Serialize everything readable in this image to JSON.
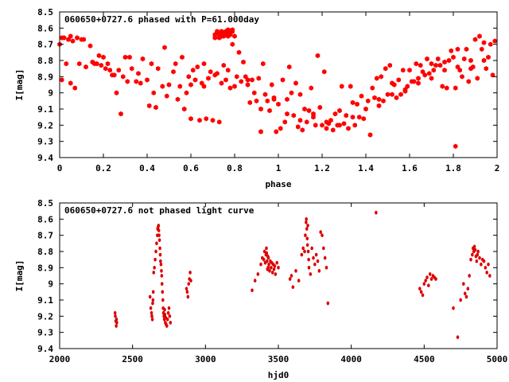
{
  "chart_data": [
    {
      "type": "scatter",
      "title": "060650+0727.6 phased with P=61.000day",
      "xlabel": "phase",
      "ylabel": "I[mag]",
      "xlim": [
        0,
        2
      ],
      "ylim": [
        8.5,
        9.4
      ],
      "y_inverted": true,
      "grid": false,
      "xticks": [
        "0",
        "0.2",
        "0.4",
        "0.6",
        "0.8",
        "1",
        "1.2",
        "1.4",
        "1.6",
        "1.8",
        "2"
      ],
      "yticks": [
        "8.5",
        "8.6",
        "8.7",
        "8.8",
        "8.9",
        "9",
        "9.1",
        "9.2",
        "9.3",
        "9.4"
      ],
      "marker_color": "#ff0000",
      "series": [
        {
          "x": [
            0.0,
            0.01,
            0.02,
            0.03,
            0.04,
            0.05,
            0.06,
            0.07,
            0.08,
            0.09,
            0.1,
            0.12,
            0.14,
            0.15,
            0.16,
            0.18,
            0.19,
            0.2,
            0.22,
            0.23,
            0.24,
            0.26,
            0.27,
            0.28,
            0.29,
            0.3,
            0.32,
            0.33,
            0.35,
            0.36,
            0.38,
            0.4,
            0.41,
            0.42,
            0.44,
            0.45,
            0.47,
            0.48,
            0.5,
            0.52,
            0.53,
            0.55,
            0.56,
            0.57,
            0.58,
            0.59,
            0.6,
            0.61,
            0.62,
            0.63,
            0.64,
            0.65,
            0.66,
            0.67,
            0.68,
            0.69,
            0.7,
            0.71,
            0.72,
            0.73,
            0.74,
            0.75,
            0.76,
            0.77,
            0.78,
            0.79,
            0.8,
            0.81,
            0.82,
            0.83,
            0.84,
            0.85,
            0.86,
            0.87,
            0.88,
            0.89,
            0.9,
            0.91,
            0.92,
            0.93,
            0.94,
            0.95,
            0.96,
            0.97,
            0.98,
            0.99,
            1.0,
            1.01,
            1.02,
            1.03,
            1.04,
            1.05,
            1.06,
            1.07,
            1.08,
            1.09,
            1.1,
            1.11,
            1.12,
            1.13,
            1.14,
            1.15,
            1.16,
            1.17,
            1.18,
            1.19,
            1.2,
            1.21,
            1.22,
            1.23,
            1.24,
            1.25,
            1.26,
            1.27,
            1.28,
            1.29,
            1.3,
            1.31,
            1.32,
            1.33,
            1.34,
            1.35,
            1.36,
            1.37,
            1.38,
            1.39,
            1.4,
            1.41,
            1.42,
            1.43,
            1.44,
            1.45,
            1.46,
            1.47,
            1.48,
            1.49,
            1.5,
            1.51,
            1.52,
            1.53,
            1.54,
            1.55,
            1.56,
            1.57,
            1.58,
            1.59,
            1.6,
            1.61,
            1.62,
            1.63,
            1.64,
            1.65,
            1.66,
            1.67,
            1.68,
            1.69,
            1.7,
            1.71,
            1.72,
            1.73,
            1.74,
            1.75,
            1.76,
            1.77,
            1.78,
            1.79,
            1.8,
            1.81,
            1.82,
            1.83,
            1.84,
            1.85,
            1.86,
            1.87,
            1.88,
            1.89,
            1.9,
            1.91,
            1.92,
            1.93,
            1.94,
            1.95,
            1.96,
            1.97,
            1.98,
            1.99,
            0.72,
            0.73,
            0.74,
            0.75,
            0.76,
            0.77,
            0.78,
            0.79,
            0.71,
            0.72,
            0.73,
            0.74,
            0.75,
            0.76,
            0.77,
            0.78,
            0.79,
            0.8,
            0.71,
            0.73,
            0.75,
            0.77,
            0.79,
            0.01,
            0.05,
            0.11,
            0.17,
            0.21,
            0.25,
            0.31,
            0.37,
            0.43,
            0.49,
            0.54,
            0.6,
            0.66,
            0.86,
            0.92,
            0.98,
            1.04,
            1.1,
            1.16,
            1.22,
            1.28,
            1.34,
            1.46,
            1.52,
            1.58,
            1.64,
            1.7,
            1.76,
            1.82,
            1.88,
            1.94,
            1.81
          ],
          "y": [
            8.7,
            8.92,
            8.66,
            8.82,
            8.67,
            8.94,
            8.68,
            8.97,
            8.66,
            8.82,
            8.67,
            8.84,
            8.71,
            8.81,
            8.82,
            8.77,
            8.83,
            8.78,
            8.82,
            8.86,
            8.89,
            9.0,
            8.86,
            9.13,
            8.9,
            8.78,
            8.78,
            8.85,
            8.93,
            8.88,
            8.79,
            8.92,
            9.08,
            8.82,
            9.09,
            8.85,
            8.96,
            8.72,
            8.95,
            8.87,
            8.82,
            8.96,
            8.78,
            9.1,
            9.0,
            8.9,
            9.16,
            8.86,
            8.92,
            8.84,
            9.17,
            8.94,
            8.82,
            9.16,
            8.91,
            8.87,
            9.17,
            8.89,
            8.88,
            9.18,
            8.94,
            8.83,
            8.92,
            8.86,
            8.97,
            8.7,
            8.96,
            8.9,
            8.75,
            8.93,
            8.81,
            8.9,
            8.95,
            9.06,
            8.92,
            9.0,
            9.05,
            8.91,
            9.24,
            8.82,
            9.01,
            9.05,
            9.11,
            8.95,
            9.03,
            9.24,
            9.07,
            9.22,
            8.92,
            9.18,
            9.04,
            8.84,
            9.0,
            9.14,
            8.94,
            9.21,
            9.01,
            9.23,
            9.1,
            9.18,
            9.11,
            8.97,
            9.13,
            9.2,
            8.77,
            9.09,
            9.2,
            8.87,
            9.22,
            9.19,
            9.17,
            9.23,
            9.13,
            9.2,
            9.11,
            8.96,
            9.19,
            9.14,
            9.22,
            8.96,
            9.15,
            9.2,
            9.07,
            9.15,
            9.02,
            9.16,
            9.1,
            9.05,
            9.26,
            8.97,
            9.03,
            8.91,
            9.04,
            8.9,
            9.05,
            8.85,
            9.01,
            8.83,
            8.94,
            8.95,
            9.03,
            8.92,
            9.01,
            8.86,
            8.98,
            8.96,
            8.86,
            8.93,
            8.93,
            8.82,
            8.91,
            8.83,
            8.87,
            8.89,
            8.79,
            8.88,
            8.82,
            8.86,
            8.83,
            8.79,
            8.83,
            8.96,
            8.81,
            8.97,
            8.8,
            8.74,
            8.78,
            8.97,
            8.73,
            8.86,
            8.9,
            8.79,
            8.73,
            8.93,
            8.8,
            8.84,
            8.67,
            8.91,
            8.65,
            8.73,
            8.69,
            8.85,
            8.78,
            8.7,
            8.89,
            8.68,
            8.62,
            8.64,
            8.65,
            8.63,
            8.62,
            8.64,
            8.63,
            8.61,
            8.66,
            8.63,
            8.64,
            8.62,
            8.65,
            8.63,
            8.61,
            8.64,
            8.62,
            8.65,
            8.64,
            8.66,
            8.63,
            8.65,
            8.62,
            8.66,
            8.65,
            8.67,
            8.82,
            8.85,
            8.89,
            8.93,
            8.94,
            9.0,
            9.02,
            9.04,
            8.95,
            8.96,
            8.92,
            9.1,
            9.04,
            9.13,
            9.17,
            9.15,
            9.18,
            9.2,
            9.06,
            9.08,
            9.01,
            8.99,
            8.94,
            8.91,
            8.86,
            8.84,
            8.85,
            8.8,
            9.33
          ]
        }
      ]
    },
    {
      "type": "scatter",
      "title": "060650+0727.6 not phased light curve",
      "xlabel": "hjd0",
      "ylabel": "I[mag]",
      "xlim": [
        2000,
        5000
      ],
      "ylim": [
        8.5,
        9.4
      ],
      "y_inverted": true,
      "grid": false,
      "xticks": [
        "2000",
        "2500",
        "3000",
        "3500",
        "4000",
        "4500",
        "5000"
      ],
      "yticks": [
        "8.5",
        "8.6",
        "8.7",
        "8.8",
        "8.9",
        "9",
        "9.1",
        "9.2",
        "9.3",
        "9.4"
      ],
      "marker_color": "#dd0000",
      "series": [
        {
          "x": [
            2380,
            2382,
            2385,
            2388,
            2390,
            2392,
            2620,
            2625,
            2630,
            2633,
            2636,
            2638,
            2640,
            2642,
            2645,
            2650,
            2655,
            2660,
            2665,
            2670,
            2672,
            2675,
            2678,
            2680,
            2682,
            2685,
            2688,
            2690,
            2692,
            2695,
            2698,
            2700,
            2702,
            2705,
            2708,
            2710,
            2712,
            2715,
            2718,
            2720,
            2722,
            2725,
            2728,
            2730,
            2735,
            2740,
            2745,
            2750,
            2755,
            2760,
            2870,
            2875,
            2880,
            2885,
            2890,
            2895,
            2900,
            3320,
            3340,
            3360,
            3380,
            3390,
            3400,
            3405,
            3410,
            3415,
            3418,
            3420,
            3422,
            3425,
            3428,
            3430,
            3432,
            3435,
            3440,
            3445,
            3450,
            3455,
            3460,
            3465,
            3470,
            3475,
            3480,
            3490,
            3500,
            3580,
            3590,
            3600,
            3620,
            3640,
            3660,
            3670,
            3680,
            3685,
            3690,
            3692,
            3695,
            3698,
            3700,
            3702,
            3705,
            3708,
            3710,
            3720,
            3730,
            3740,
            3750,
            3760,
            3770,
            3780,
            3790,
            3800,
            3810,
            3820,
            3830,
            3840,
            4170,
            4470,
            4480,
            4490,
            4500,
            4510,
            4520,
            4530,
            4540,
            4550,
            4560,
            4570,
            4580,
            4700,
            4730,
            4750,
            4770,
            4780,
            4790,
            4800,
            4810,
            4820,
            4830,
            4835,
            4840,
            4845,
            4850,
            4855,
            4860,
            4865,
            4870,
            4880,
            4890,
            4900,
            4910,
            4920,
            4930,
            4940,
            4950
          ],
          "y": [
            9.18,
            9.2,
            9.23,
            9.26,
            9.22,
            9.24,
            9.08,
            9.15,
            9.18,
            9.2,
            9.22,
            9.12,
            9.1,
            9.05,
            8.93,
            8.9,
            8.85,
            8.8,
            8.75,
            8.7,
            8.66,
            8.65,
            8.64,
            8.67,
            8.7,
            8.73,
            8.78,
            8.82,
            8.86,
            8.88,
            8.92,
            8.95,
            9.0,
            9.05,
            9.1,
            9.15,
            9.18,
            9.2,
            9.22,
            9.16,
            9.19,
            9.24,
            9.21,
            9.25,
            9.26,
            9.22,
            9.18,
            9.15,
            9.2,
            9.24,
            9.03,
            9.05,
            9.08,
            9.0,
            8.97,
            8.93,
            8.98,
            9.04,
            8.98,
            8.94,
            8.88,
            8.84,
            8.85,
            8.8,
            8.87,
            8.82,
            8.78,
            8.81,
            8.86,
            8.91,
            8.83,
            8.9,
            8.84,
            8.88,
            8.92,
            8.86,
            8.9,
            8.87,
            8.93,
            8.88,
            8.91,
            8.89,
            8.94,
            8.87,
            8.9,
            8.97,
            8.95,
            9.02,
            8.92,
            8.98,
            8.82,
            8.78,
            8.8,
            8.7,
            8.62,
            8.6,
            8.66,
            8.72,
            8.76,
            8.64,
            8.8,
            8.85,
            8.9,
            8.94,
            8.78,
            8.84,
            8.88,
            8.82,
            8.86,
            8.92,
            8.68,
            8.7,
            8.78,
            8.84,
            8.9,
            9.12,
            8.56,
            9.03,
            9.05,
            9.07,
            9.0,
            8.98,
            8.96,
            9.01,
            8.94,
            8.97,
            8.95,
            8.96,
            8.97,
            9.15,
            9.33,
            9.1,
            9.0,
            9.06,
            9.08,
            9.03,
            8.95,
            8.85,
            8.82,
            8.78,
            8.8,
            8.77,
            8.79,
            8.83,
            8.86,
            8.82,
            8.8,
            8.84,
            8.88,
            8.85,
            8.86,
            8.9,
            8.93,
            8.88,
            8.95
          ]
        }
      ]
    }
  ]
}
